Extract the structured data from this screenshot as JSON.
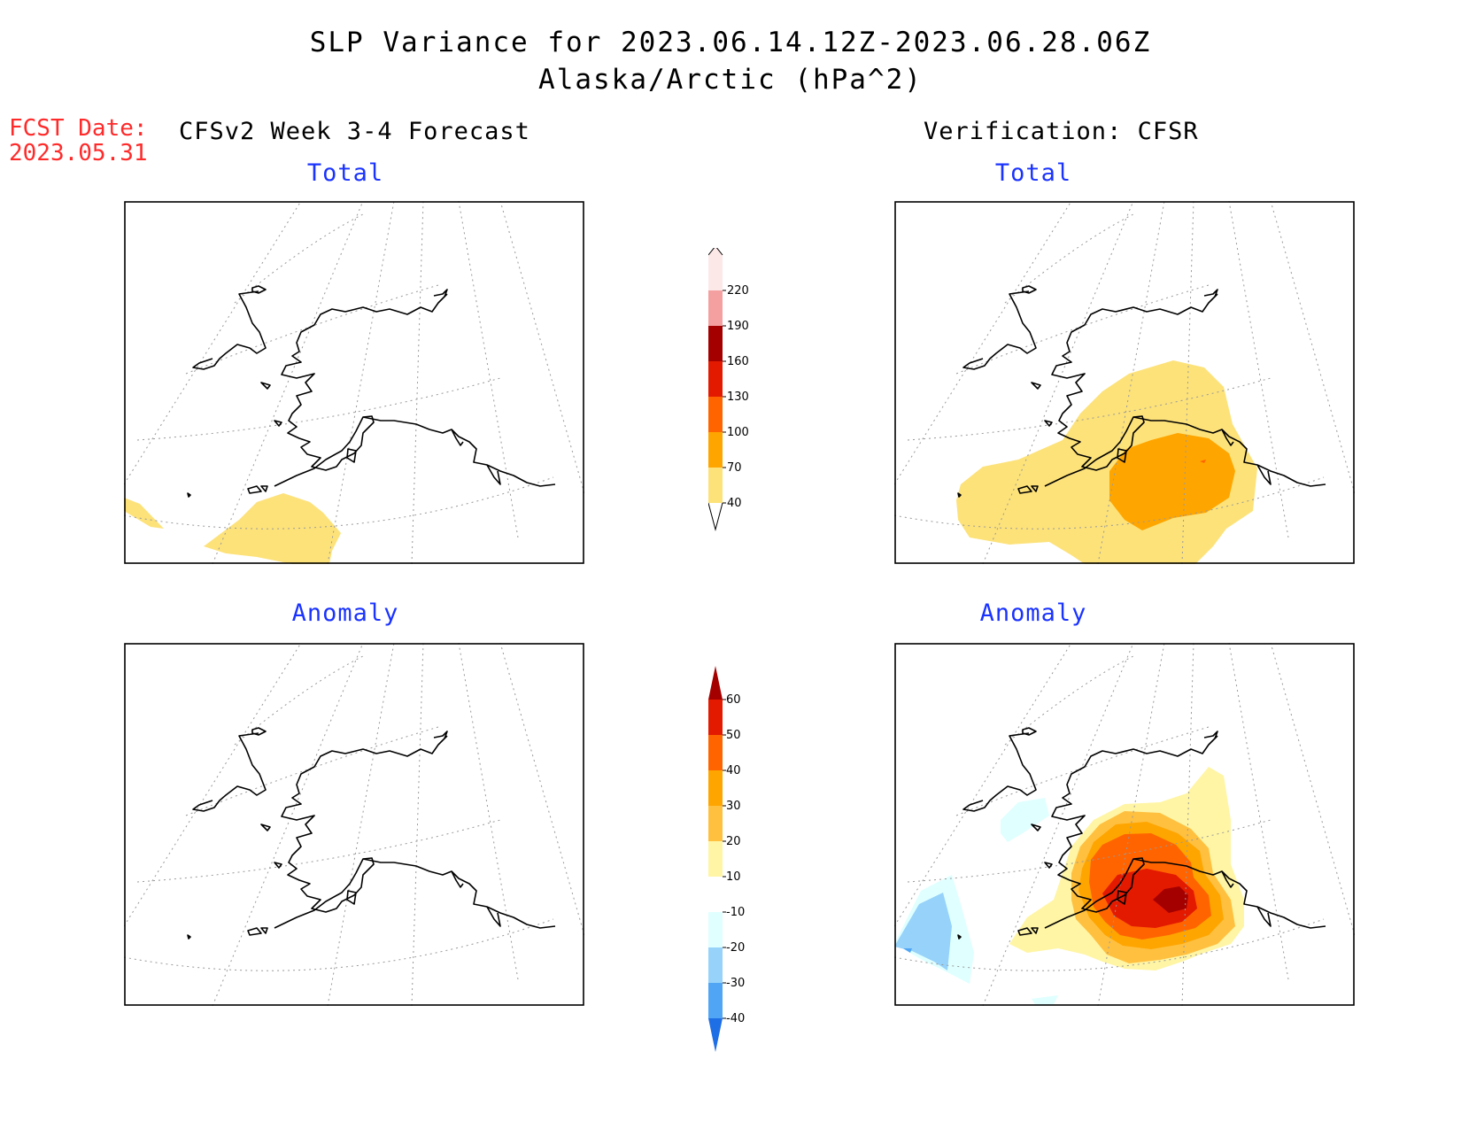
{
  "header": {
    "title_line1": "SLP Variance for 2023.06.14.12Z-2023.06.28.06Z",
    "title_line2": "Alaska/Arctic (hPa^2)",
    "fcst_label": "FCST Date:",
    "fcst_date": "2023.05.31",
    "left_header": "CFSv2 Week 3-4 Forecast",
    "right_header": "Verification: CFSR"
  },
  "panels": {
    "fcst_total": "Total",
    "verif_total": "Total",
    "fcst_anomaly": "Anomaly",
    "verif_anomaly": "Anomaly"
  },
  "colorbars": {
    "total": {
      "levels": [
        "40",
        "70",
        "100",
        "130",
        "160",
        "190",
        "220"
      ],
      "colors": [
        "#fde27a",
        "#ffa500",
        "#ff6400",
        "#e31a00",
        "#a50000",
        "#f4a0a0",
        "#fde8e8"
      ]
    },
    "anomaly": {
      "levels": [
        "60",
        "50",
        "40",
        "30",
        "20",
        "10",
        "-10",
        "-20",
        "-30",
        "-40"
      ],
      "colors": [
        "#a50000",
        "#e31a00",
        "#ff6400",
        "#ffa500",
        "#ffc040",
        "#fff5a5",
        "#ffffff",
        "#e0ffff",
        "#96d2fa",
        "#50a5f5",
        "#1e6ee6"
      ]
    }
  }
}
